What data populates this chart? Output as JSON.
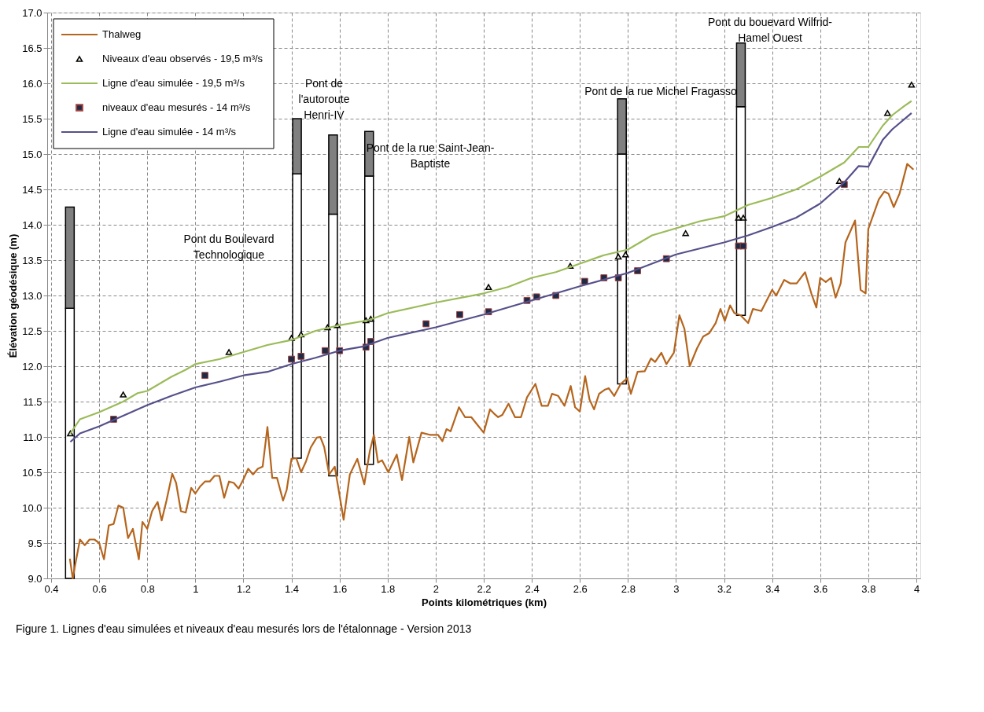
{
  "chart_data": {
    "type": "line",
    "xlabel": "Points kilométriques (km)",
    "ylabel": "Élévation géodésique (m)",
    "xlim": [
      0.4,
      4
    ],
    "xticks": [
      0.4,
      0.6,
      0.8,
      1,
      1.2,
      1.4,
      1.6,
      1.8,
      2,
      2.2,
      2.4,
      2.6,
      2.8,
      3,
      3.2,
      3.4,
      3.6,
      3.8,
      4
    ],
    "ylim": [
      9,
      17
    ],
    "yticks": [
      {
        "value": 9,
        "label": "9.0"
      },
      9.5,
      {
        "value": 10,
        "label": "10.0"
      },
      10.5,
      {
        "value": 11,
        "label": "11.0"
      },
      11.5,
      {
        "value": 12,
        "label": "12.0"
      },
      12.5,
      {
        "value": 13,
        "label": "13.0"
      },
      13.5,
      {
        "value": 14,
        "label": "14.0"
      },
      14.5,
      {
        "value": 15,
        "label": "15.0"
      },
      15.5,
      {
        "value": 16,
        "label": "16.0"
      },
      16.5,
      {
        "value": 17,
        "label": "17.0"
      }
    ],
    "grid": true,
    "legend": "top left",
    "series": [
      {
        "type": "bar",
        "color": "#ffffff",
        "x": [
          0.478,
          1.423,
          1.573,
          1.723,
          2.775,
          3.27
        ],
        "base": [
          9.0,
          10.7,
          10.45,
          10.61,
          11.75,
          12.72
        ],
        "values": [
          3.82,
          4.02,
          3.7,
          4.08,
          3.25,
          2.95
        ]
      },
      {
        "type": "bar",
        "color": "#808080",
        "x": [
          0.478,
          1.423,
          1.573,
          1.723,
          2.775,
          3.27
        ],
        "base": [
          12.82,
          14.72,
          14.15,
          14.69,
          15.0,
          15.67
        ],
        "values": [
          1.43,
          0.78,
          1.12,
          0.63,
          0.78,
          0.9
        ]
      },
      {
        "name": "Thalweg",
        "type": "line",
        "marker": "none",
        "color": "#b5651d",
        "values": [
          9.28,
          9.0,
          9.19,
          9.55,
          9.47,
          9.55,
          9.55,
          9.5,
          9.27,
          9.75,
          9.77,
          10.03,
          10.0,
          9.57,
          9.7,
          9.27,
          9.8,
          9.7,
          9.95,
          10.08,
          9.82,
          10.1,
          10.48,
          10.35,
          9.95,
          9.93,
          10.28,
          10.2,
          10.3,
          10.37,
          10.37,
          10.45,
          10.45,
          10.14,
          10.37,
          10.35,
          10.27,
          10.4,
          10.55,
          10.47,
          10.55,
          10.58,
          11.14,
          10.42,
          10.42,
          10.1,
          10.25,
          10.69,
          10.7,
          10.5,
          10.65,
          10.85,
          10.99,
          11.0,
          10.86,
          10.47,
          10.58,
          9.83,
          10.47,
          10.69,
          10.33,
          10.8,
          11.03,
          10.64,
          10.67,
          10.5,
          10.75,
          10.39,
          11.0,
          10.64,
          11.06,
          11.03,
          11.03,
          10.94,
          11.11,
          11.08,
          11.42,
          11.28,
          11.28,
          11.17,
          11.06,
          11.39,
          11.33,
          11.28,
          11.31,
          11.47,
          11.28,
          11.28,
          11.56,
          11.75,
          11.44,
          11.44,
          11.61,
          11.58,
          11.44,
          11.72,
          11.42,
          11.36,
          11.86,
          11.53,
          11.39,
          11.61,
          11.67,
          11.69,
          11.58,
          11.75,
          11.83,
          11.61,
          11.92,
          11.93,
          12.11,
          12.06,
          12.19,
          12.03,
          12.19,
          12.72,
          12.53,
          12.0,
          12.25,
          12.42,
          12.47,
          12.61,
          12.81,
          12.64,
          12.86,
          12.75,
          12.72,
          12.61,
          12.81,
          12.78,
          13.08,
          13.0,
          13.22,
          13.17,
          13.17,
          13.33,
          13.03,
          12.83,
          13.25,
          13.19,
          13.25,
          12.97,
          13.17,
          13.75,
          14.06,
          13.08,
          13.03,
          13.94,
          14.14,
          14.36,
          14.47,
          14.44,
          14.25,
          14.44,
          14.86,
          14.78
        ],
        "x": [
          0.478,
          0.49,
          0.5,
          0.52,
          0.54,
          0.56,
          0.58,
          0.6,
          0.62,
          0.64,
          0.66,
          0.68,
          0.7,
          0.72,
          0.74,
          0.765,
          0.78,
          0.8,
          0.82,
          0.843,
          0.86,
          0.88,
          0.904,
          0.92,
          0.94,
          0.96,
          0.983,
          1.0,
          1.02,
          1.04,
          1.06,
          1.08,
          1.1,
          1.12,
          1.14,
          1.16,
          1.18,
          1.2,
          1.22,
          1.24,
          1.26,
          1.28,
          1.3,
          1.32,
          1.34,
          1.365,
          1.38,
          1.4,
          1.42,
          1.44,
          1.46,
          1.48,
          1.505,
          1.52,
          1.536,
          1.557,
          1.58,
          1.617,
          1.643,
          1.674,
          1.703,
          1.726,
          1.743,
          1.76,
          1.777,
          1.803,
          1.838,
          1.86,
          1.89,
          1.907,
          1.941,
          1.976,
          2.01,
          2.028,
          2.045,
          2.062,
          2.097,
          2.122,
          2.148,
          2.174,
          2.2,
          2.226,
          2.243,
          2.26,
          2.277,
          2.303,
          2.33,
          2.355,
          2.38,
          2.415,
          2.441,
          2.467,
          2.484,
          2.51,
          2.536,
          2.562,
          2.58,
          2.6,
          2.622,
          2.64,
          2.659,
          2.68,
          2.705,
          2.72,
          2.743,
          2.77,
          2.797,
          2.812,
          2.84,
          2.87,
          2.896,
          2.913,
          2.939,
          2.96,
          2.991,
          3.014,
          3.035,
          3.057,
          3.087,
          3.113,
          3.139,
          3.165,
          3.185,
          3.203,
          3.225,
          3.243,
          3.269,
          3.3,
          3.32,
          3.355,
          3.4,
          3.417,
          3.45,
          3.476,
          3.502,
          3.537,
          3.563,
          3.584,
          3.6,
          3.623,
          3.645,
          3.664,
          3.685,
          3.705,
          3.745,
          3.768,
          3.789,
          3.8,
          3.821,
          3.844,
          3.867,
          3.884,
          3.906,
          3.93,
          3.962,
          3.988
        ]
      },
      {
        "name": "Niveaux d'eau observés - 19,5 m³/s",
        "type": "scatter",
        "marker": "triangle",
        "color": "#000000",
        "x": [
          0.48,
          0.7,
          1.14,
          1.4,
          1.44,
          1.55,
          1.59,
          1.71,
          1.73,
          2.22,
          2.56,
          2.76,
          2.79,
          3.04,
          3.26,
          3.28,
          3.68,
          3.88,
          3.98
        ],
        "values": [
          11.05,
          11.6,
          12.2,
          12.4,
          12.45,
          12.55,
          12.58,
          12.65,
          12.67,
          13.12,
          13.42,
          13.55,
          13.58,
          13.88,
          14.1,
          14.1,
          14.62,
          15.58,
          15.98
        ]
      },
      {
        "name": "Ligne d'eau simulée - 19,5 m³/s",
        "type": "line",
        "marker": "none",
        "color": "#9bbb59",
        "x": [
          0.48,
          0.52,
          0.6,
          0.7,
          0.76,
          0.8,
          0.9,
          0.96,
          1.0,
          1.1,
          1.2,
          1.3,
          1.4,
          1.5,
          1.6,
          1.72,
          1.8,
          2.0,
          2.2,
          2.3,
          2.4,
          2.5,
          2.6,
          2.7,
          2.8,
          2.9,
          3.0,
          3.1,
          3.2,
          3.3,
          3.4,
          3.5,
          3.6,
          3.7,
          3.76,
          3.8,
          3.86,
          3.9,
          3.95,
          3.98
        ],
        "values": [
          11.05,
          11.25,
          11.35,
          11.5,
          11.62,
          11.65,
          11.85,
          11.95,
          12.03,
          12.1,
          12.2,
          12.3,
          12.37,
          12.5,
          12.58,
          12.65,
          12.75,
          12.9,
          13.03,
          13.12,
          13.25,
          13.33,
          13.45,
          13.57,
          13.65,
          13.85,
          13.95,
          14.05,
          14.12,
          14.28,
          14.38,
          14.5,
          14.68,
          14.88,
          15.1,
          15.1,
          15.4,
          15.55,
          15.68,
          15.75
        ]
      },
      {
        "name": "niveaux d'eau mesurés - 14 m³/s",
        "type": "scatter",
        "marker": "square",
        "color": "#1f2a44",
        "x": [
          0.66,
          1.04,
          1.4,
          1.44,
          1.54,
          1.6,
          1.71,
          1.73,
          1.96,
          2.1,
          2.22,
          2.38,
          2.42,
          2.5,
          2.62,
          2.7,
          2.76,
          2.84,
          2.96,
          3.26,
          3.28,
          3.7
        ],
        "values": [
          11.25,
          11.87,
          12.1,
          12.14,
          12.22,
          12.22,
          12.27,
          12.35,
          12.6,
          12.73,
          12.77,
          12.93,
          12.98,
          13.0,
          13.2,
          13.25,
          13.25,
          13.35,
          13.52,
          13.7,
          13.7,
          14.57
        ]
      },
      {
        "name": "Ligne d'eau simulée - 14 m³/s",
        "type": "line",
        "marker": "none",
        "color": "#55508a",
        "x": [
          0.48,
          0.52,
          0.6,
          0.7,
          0.8,
          0.9,
          1.0,
          1.1,
          1.2,
          1.3,
          1.4,
          1.5,
          1.6,
          1.7,
          1.8,
          2.0,
          2.2,
          2.4,
          2.6,
          2.8,
          3.0,
          3.2,
          3.3,
          3.4,
          3.5,
          3.6,
          3.7,
          3.76,
          3.8,
          3.86,
          3.9,
          3.98
        ],
        "values": [
          10.93,
          11.05,
          11.15,
          11.3,
          11.45,
          11.58,
          11.7,
          11.78,
          11.87,
          11.92,
          12.03,
          12.12,
          12.22,
          12.28,
          12.4,
          12.55,
          12.73,
          12.93,
          13.13,
          13.32,
          13.58,
          13.75,
          13.85,
          13.97,
          14.1,
          14.3,
          14.6,
          14.83,
          14.82,
          15.2,
          15.35,
          15.58
        ]
      }
    ],
    "annotations": [
      "Pont du Boulevard\nTechnologique",
      "Pont de\nl'autoroute\nHenri-IV",
      "Pont de la rue Saint-Jean-\nBaptiste",
      "Pont de la rue Michel Fragasso",
      "Pont du bouevard Wilfrid-\nHamel Ouest",
      "Figure 1. Lignes d'eau simulées et niveaux d'eau mesurés lors de l'étalonnage - Version 2013"
    ]
  }
}
